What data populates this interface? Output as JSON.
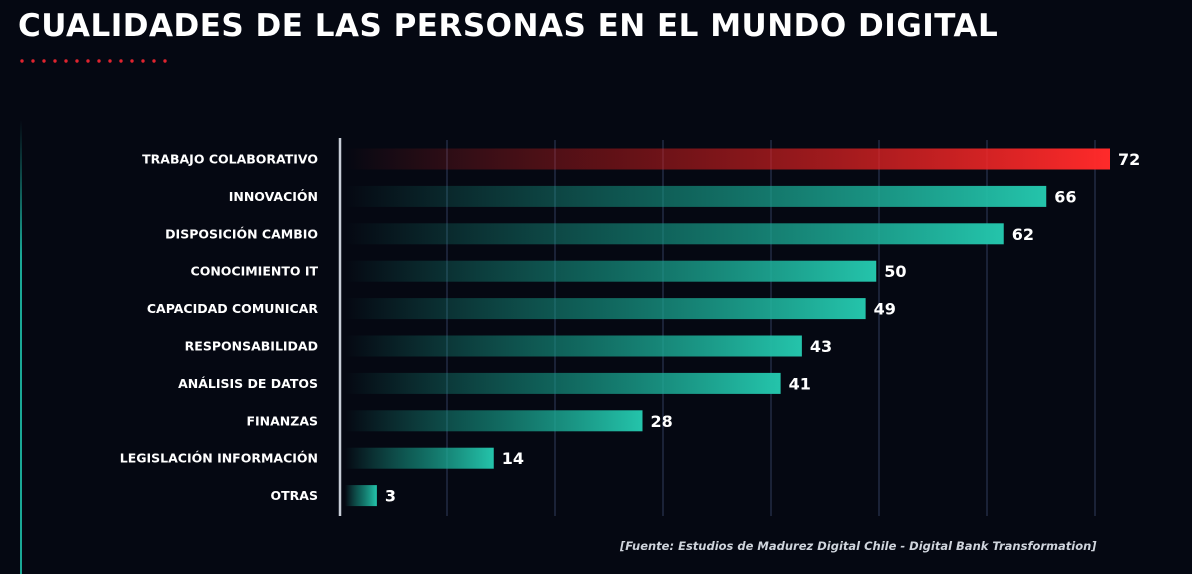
{
  "title": "CUALIDADES DE LAS PERSONAS EN EL MUNDO DIGITAL",
  "source": "[Fuente: Estudios de Madurez Digital Chile -  Digital Bank Transformation]",
  "colors": {
    "background": "#050812",
    "highlight": "#ff2a2a",
    "bar": "#1fb39d",
    "title_dots": "#e0242f"
  },
  "chart_data": {
    "type": "bar",
    "orientation": "horizontal",
    "title": "CUALIDADES DE LAS PERSONAS EN EL MUNDO DIGITAL",
    "xlabel": "",
    "ylabel": "",
    "xlim": [
      0,
      72
    ],
    "grid": true,
    "categories": [
      "TRABAJO COLABORATIVO",
      "INNOVACIÓN",
      "DISPOSICIÓN CAMBIO",
      "CONOCIMIENTO IT",
      "CAPACIDAD COMUNICAR",
      "RESPONSABILIDAD",
      "ANÁLISIS DE DATOS",
      "FINANZAS",
      "LEGISLACIÓN INFORMACIÓN",
      "OTRAS"
    ],
    "values": [
      72,
      66,
      62,
      50,
      49,
      43,
      41,
      28,
      14,
      3
    ],
    "highlighted_category": "TRABAJO COLABORATIVO"
  }
}
